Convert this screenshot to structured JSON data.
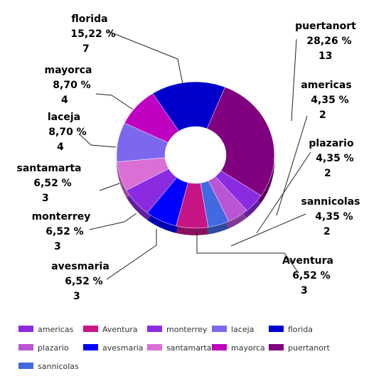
{
  "chart_data": {
    "type": "pie",
    "donut": true,
    "title": "",
    "slices": [
      {
        "name": "puertanort",
        "percent_label": "28,26 %",
        "value": 13,
        "color": "#800080"
      },
      {
        "name": "americas",
        "percent_label": "4,35 %",
        "value": 2,
        "color": "#8A2BE2"
      },
      {
        "name": "plazario",
        "percent_label": "4,35 %",
        "value": 2,
        "color": "#BA55D3"
      },
      {
        "name": "sannicolas",
        "percent_label": "4,35 %",
        "value": 2,
        "color": "#4169E1"
      },
      {
        "name": "Aventura",
        "percent_label": "6,52 %",
        "value": 3,
        "color": "#C71585"
      },
      {
        "name": "avesmaria",
        "percent_label": "6,52 %",
        "value": 3,
        "color": "#0000FF"
      },
      {
        "name": "monterrey",
        "percent_label": "6,52 %",
        "value": 3,
        "color": "#8A2BE2"
      },
      {
        "name": "santamarta",
        "percent_label": "6,52 %",
        "value": 3,
        "color": "#DA70D6"
      },
      {
        "name": "laceja",
        "percent_label": "8,70 %",
        "value": 4,
        "color": "#7B68EE"
      },
      {
        "name": "mayorca",
        "percent_label": "8,70 %",
        "value": 4,
        "color": "#C000C0"
      },
      {
        "name": "florida",
        "percent_label": "15,22 %",
        "value": 7,
        "color": "#0000CD"
      }
    ],
    "legend": {
      "placement": "bottom",
      "entries": [
        {
          "name": "americas",
          "color": "#8A2BE2"
        },
        {
          "name": "Aventura",
          "color": "#C71585"
        },
        {
          "name": "monterrey",
          "color": "#8A2BE2"
        },
        {
          "name": "laceja",
          "color": "#7B68EE"
        },
        {
          "name": "florida",
          "color": "#0000CD"
        },
        {
          "name": "plazario",
          "color": "#BA55D3"
        },
        {
          "name": "avesmaria",
          "color": "#0000FF"
        },
        {
          "name": "santamarta",
          "color": "#DA70D6"
        },
        {
          "name": "mayorca",
          "color": "#C000C0"
        },
        {
          "name": "puertanort",
          "color": "#800080"
        },
        {
          "name": "sannicolas",
          "color": "#4169E1"
        }
      ]
    }
  }
}
